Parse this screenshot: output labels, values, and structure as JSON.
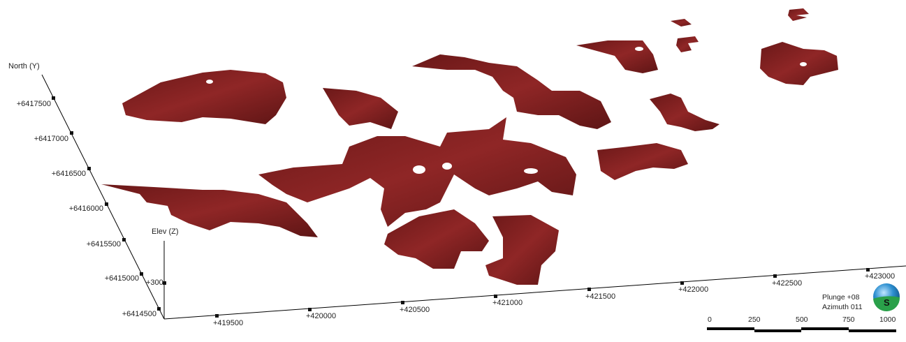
{
  "viewer": {
    "colors": {
      "body": "#7d1f1f",
      "body_light": "#9a2a2a",
      "body_dark": "#5a1414",
      "axis": "#000000"
    },
    "north_axis": {
      "title": "North (Y)",
      "ticks": [
        "+6417500",
        "+6417000",
        "+6416500",
        "+6416000",
        "+6415500",
        "+6415000",
        "+6414500"
      ]
    },
    "east_axis": {
      "ticks": [
        "+419500",
        "+420000",
        "+420500",
        "+421000",
        "+421500",
        "+422000",
        "+422500",
        "+423000"
      ]
    },
    "elev_axis": {
      "title": "Elev (Z)",
      "ticks": [
        "+300"
      ]
    },
    "orientation": {
      "plunge": "Plunge +08",
      "azimuth": "Azimuth 011",
      "compass_letter": "S",
      "icon": "orientation-globe-icon"
    },
    "scale_bar": {
      "labels": [
        "0",
        "250",
        "500",
        "750",
        "1000"
      ]
    }
  }
}
